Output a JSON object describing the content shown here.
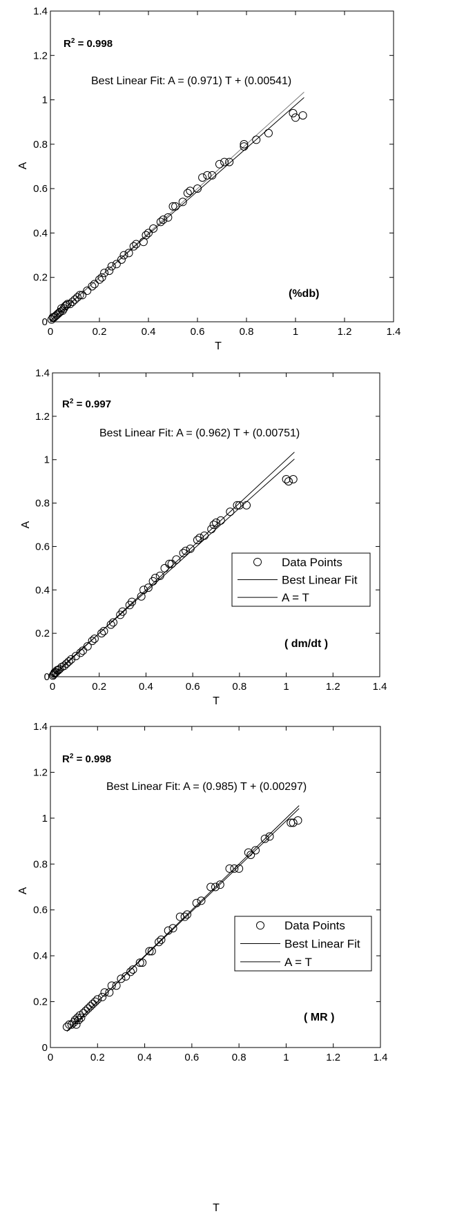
{
  "chart_data": [
    {
      "type": "scatter",
      "xlabel": "T",
      "ylabel": "A",
      "xlim": [
        0,
        1.4
      ],
      "ylim": [
        0,
        1.4
      ],
      "xticks": [
        "0",
        "0.2",
        "0.4",
        "0.6",
        "0.8",
        "1",
        "1.2",
        "1.4"
      ],
      "yticks": [
        "0",
        "0.2",
        "0.4",
        "0.6",
        "0.8",
        "1",
        "1.2",
        "1.4"
      ],
      "r2_label": "R",
      "r2_sup": "2",
      "r2_value": " = 0.998",
      "fit_text": "Best Linear Fit:  A = (0.971) T + (0.00541)",
      "tag": "(%db)",
      "fit": {
        "slope": 0.971,
        "intercept": 0.00541
      },
      "legend": null,
      "series": [
        {
          "marker": "circle",
          "x": [
            0.005,
            0.01,
            0.015,
            0.02,
            0.025,
            0.03,
            0.035,
            0.04,
            0.045,
            0.05,
            0.055,
            0.06,
            0.065,
            0.07,
            0.08,
            0.09,
            0.1,
            0.11,
            0.12,
            0.13,
            0.15,
            0.17,
            0.18,
            0.2,
            0.21,
            0.22,
            0.24,
            0.25,
            0.27,
            0.29,
            0.3,
            0.32,
            0.34,
            0.35,
            0.38,
            0.39,
            0.4,
            0.42,
            0.45,
            0.46,
            0.48,
            0.5,
            0.51,
            0.54,
            0.56,
            0.57,
            0.6,
            0.62,
            0.64,
            0.66,
            0.69,
            0.71,
            0.73,
            0.79,
            0.79,
            0.84,
            0.89,
            0.99,
            1.0,
            1.03
          ],
          "y": [
            0.01,
            0.02,
            0.02,
            0.025,
            0.03,
            0.035,
            0.04,
            0.045,
            0.06,
            0.05,
            0.06,
            0.07,
            0.075,
            0.08,
            0.08,
            0.09,
            0.1,
            0.11,
            0.12,
            0.12,
            0.14,
            0.16,
            0.17,
            0.19,
            0.2,
            0.22,
            0.23,
            0.25,
            0.26,
            0.28,
            0.3,
            0.31,
            0.34,
            0.35,
            0.36,
            0.39,
            0.4,
            0.42,
            0.45,
            0.46,
            0.47,
            0.52,
            0.52,
            0.54,
            0.58,
            0.59,
            0.6,
            0.65,
            0.66,
            0.66,
            0.71,
            0.72,
            0.72,
            0.79,
            0.8,
            0.82,
            0.85,
            0.94,
            0.92,
            0.93
          ]
        }
      ]
    },
    {
      "type": "scatter",
      "xlabel": "T",
      "ylabel": "A",
      "xlim": [
        0,
        1.4
      ],
      "ylim": [
        0,
        1.4
      ],
      "xticks": [
        "0",
        "0.2",
        "0.4",
        "0.6",
        "0.8",
        "1",
        "1.2",
        "1.4"
      ],
      "yticks": [
        "0",
        "0.2",
        "0.4",
        "0.6",
        "0.8",
        "1",
        "1.2",
        "1.4"
      ],
      "r2_label": "R",
      "r2_sup": "2",
      "r2_value": " = 0.997",
      "fit_text": "Best Linear Fit:  A = (0.962) T + (0.00751)",
      "tag": "( dm/dt )",
      "fit": {
        "slope": 0.962,
        "intercept": 0.00751
      },
      "legend": [
        "Data Points",
        "Best Linear Fit",
        "A = T"
      ],
      "series": [
        {
          "marker": "circle",
          "x": [
            0.002,
            0.005,
            0.008,
            0.01,
            0.015,
            0.02,
            0.025,
            0.03,
            0.04,
            0.05,
            0.06,
            0.07,
            0.08,
            0.1,
            0.12,
            0.13,
            0.15,
            0.17,
            0.18,
            0.21,
            0.22,
            0.25,
            0.26,
            0.29,
            0.3,
            0.33,
            0.34,
            0.38,
            0.39,
            0.41,
            0.43,
            0.44,
            0.46,
            0.48,
            0.5,
            0.51,
            0.53,
            0.56,
            0.57,
            0.59,
            0.62,
            0.63,
            0.65,
            0.68,
            0.69,
            0.7,
            0.72,
            0.76,
            0.79,
            0.8,
            0.83,
            1.0,
            1.01,
            1.03
          ],
          "y": [
            0.005,
            0.01,
            0.015,
            0.02,
            0.02,
            0.03,
            0.03,
            0.035,
            0.045,
            0.05,
            0.06,
            0.07,
            0.08,
            0.095,
            0.11,
            0.12,
            0.14,
            0.165,
            0.175,
            0.2,
            0.21,
            0.24,
            0.25,
            0.285,
            0.3,
            0.33,
            0.345,
            0.37,
            0.4,
            0.41,
            0.44,
            0.455,
            0.465,
            0.5,
            0.52,
            0.52,
            0.54,
            0.57,
            0.58,
            0.59,
            0.63,
            0.64,
            0.65,
            0.68,
            0.7,
            0.71,
            0.72,
            0.76,
            0.79,
            0.79,
            0.79,
            0.91,
            0.9,
            0.91
          ]
        }
      ]
    },
    {
      "type": "scatter",
      "xlabel": "T",
      "ylabel": "A",
      "xlim": [
        0,
        1.4
      ],
      "ylim": [
        0,
        1.4
      ],
      "xticks": [
        "0",
        "0.2",
        "0.4",
        "0.6",
        "0.8",
        "1",
        "1.2",
        "1.4"
      ],
      "yticks": [
        "0",
        "0.2",
        "0.4",
        "0.6",
        "0.8",
        "1",
        "1.2",
        "1.4"
      ],
      "r2_label": "R",
      "r2_sup": "2",
      "r2_value": " = 0.998",
      "fit_text": "Best Linear Fit:  A = (0.985) T + (0.00297)",
      "tag": "( MR )",
      "fit": {
        "slope": 0.985,
        "intercept": 0.00297
      },
      "legend": [
        "Data Points",
        "Best Linear Fit",
        "A = T"
      ],
      "series": [
        {
          "marker": "circle",
          "x": [
            0.07,
            0.08,
            0.09,
            0.1,
            0.105,
            0.11,
            0.115,
            0.12,
            0.125,
            0.13,
            0.14,
            0.15,
            0.16,
            0.17,
            0.18,
            0.19,
            0.2,
            0.22,
            0.23,
            0.25,
            0.26,
            0.28,
            0.3,
            0.32,
            0.34,
            0.35,
            0.38,
            0.39,
            0.42,
            0.43,
            0.46,
            0.47,
            0.5,
            0.52,
            0.55,
            0.57,
            0.58,
            0.62,
            0.64,
            0.68,
            0.7,
            0.72,
            0.76,
            0.78,
            0.8,
            0.84,
            0.85,
            0.87,
            0.91,
            0.93,
            1.02,
            1.03,
            1.05
          ],
          "y": [
            0.09,
            0.1,
            0.1,
            0.11,
            0.12,
            0.1,
            0.13,
            0.12,
            0.14,
            0.13,
            0.15,
            0.16,
            0.17,
            0.18,
            0.19,
            0.2,
            0.21,
            0.22,
            0.24,
            0.24,
            0.27,
            0.27,
            0.3,
            0.31,
            0.33,
            0.34,
            0.37,
            0.37,
            0.42,
            0.42,
            0.46,
            0.47,
            0.51,
            0.52,
            0.57,
            0.57,
            0.58,
            0.63,
            0.64,
            0.7,
            0.7,
            0.71,
            0.78,
            0.78,
            0.78,
            0.85,
            0.84,
            0.86,
            0.91,
            0.92,
            0.98,
            0.98,
            0.99
          ]
        }
      ]
    }
  ]
}
